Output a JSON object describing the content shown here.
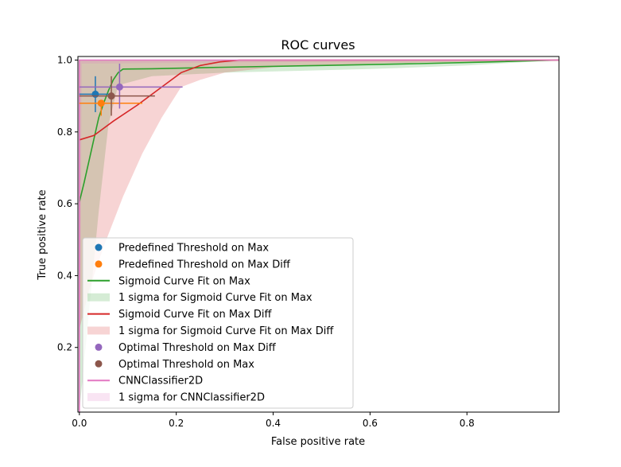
{
  "chart_data": {
    "type": "line",
    "title": "ROC curves",
    "xlabel": "False positive rate",
    "ylabel": "True positive rate",
    "xlim": [
      -0.003,
      0.99
    ],
    "ylim": [
      0.02,
      1.01
    ],
    "xticks": [
      0.0,
      0.2,
      0.4,
      0.6,
      0.8
    ],
    "xtick_labels": [
      "0.0",
      "0.2",
      "0.4",
      "0.6",
      "0.8"
    ],
    "yticks": [
      0.2,
      0.4,
      0.6,
      0.8,
      1.0
    ],
    "ytick_labels": [
      "0.2",
      "0.4",
      "0.6",
      "0.8",
      "1.0"
    ],
    "grid": false,
    "legend_position": "lower-left",
    "series": [
      {
        "name": "1 sigma for Sigmoid Curve Fit on Max",
        "kind": "band",
        "color": "#2ca02c",
        "opacity": 0.2,
        "upper": [
          [
            0.0,
            0.02
          ],
          [
            0.0,
            1.0
          ],
          [
            0.99,
            1.0
          ]
        ],
        "lower": [
          [
            0.0,
            0.02
          ],
          [
            0.02,
            0.3
          ],
          [
            0.04,
            0.58
          ],
          [
            0.06,
            0.82
          ],
          [
            0.08,
            0.93
          ],
          [
            0.15,
            0.955
          ],
          [
            0.3,
            0.965
          ],
          [
            0.6,
            0.975
          ],
          [
            0.8,
            0.985
          ],
          [
            0.99,
            1.0
          ]
        ]
      },
      {
        "name": "1 sigma for Sigmoid Curve Fit on Max Diff",
        "kind": "band",
        "color": "#d62728",
        "opacity": 0.2,
        "upper": [
          [
            0.0,
            0.02
          ],
          [
            0.0,
            1.0
          ],
          [
            0.99,
            1.0
          ]
        ],
        "lower": [
          [
            0.0,
            0.02
          ],
          [
            0.0,
            0.25
          ],
          [
            0.02,
            0.36
          ],
          [
            0.05,
            0.48
          ],
          [
            0.09,
            0.62
          ],
          [
            0.13,
            0.74
          ],
          [
            0.17,
            0.84
          ],
          [
            0.21,
            0.925
          ],
          [
            0.25,
            0.945
          ],
          [
            0.3,
            0.965
          ],
          [
            0.4,
            0.98
          ],
          [
            0.6,
            0.99
          ],
          [
            0.99,
            1.0
          ]
        ]
      },
      {
        "name": "1 sigma for CNNClassifier2D",
        "kind": "band",
        "color": "#e377c2",
        "opacity": 0.2,
        "upper": [
          [
            0.0,
            0.02
          ],
          [
            0.0,
            1.0
          ],
          [
            0.99,
            1.0
          ]
        ],
        "lower": [
          [
            0.0,
            0.02
          ],
          [
            0.001,
            0.1
          ],
          [
            0.003,
            0.5
          ],
          [
            0.005,
            0.99
          ],
          [
            0.99,
            1.0
          ]
        ]
      },
      {
        "name": "Sigmoid Curve Fit on Max",
        "kind": "line",
        "color": "#2ca02c",
        "points": [
          [
            0.0,
            0.605
          ],
          [
            0.01,
            0.66
          ],
          [
            0.02,
            0.72
          ],
          [
            0.03,
            0.78
          ],
          [
            0.04,
            0.84
          ],
          [
            0.05,
            0.88
          ],
          [
            0.06,
            0.915
          ],
          [
            0.07,
            0.945
          ],
          [
            0.08,
            0.965
          ],
          [
            0.09,
            0.975
          ],
          [
            0.15,
            0.976
          ],
          [
            0.3,
            0.98
          ],
          [
            0.5,
            0.985
          ],
          [
            0.7,
            0.99
          ],
          [
            0.85,
            0.995
          ],
          [
            0.99,
            1.0
          ]
        ]
      },
      {
        "name": "Sigmoid Curve Fit on Max Diff",
        "kind": "line",
        "color": "#d62728",
        "points": [
          [
            0.0,
            0.778
          ],
          [
            0.03,
            0.79
          ],
          [
            0.07,
            0.83
          ],
          [
            0.12,
            0.875
          ],
          [
            0.17,
            0.925
          ],
          [
            0.21,
            0.965
          ],
          [
            0.25,
            0.985
          ],
          [
            0.29,
            0.995
          ],
          [
            0.33,
            1.0
          ],
          [
            0.99,
            1.0
          ]
        ]
      },
      {
        "name": "CNNClassifier2D",
        "kind": "line",
        "color": "#e377c2",
        "points": [
          [
            0.0,
            0.02
          ],
          [
            0.0,
            1.0
          ],
          [
            0.99,
            1.0
          ]
        ]
      },
      {
        "name": "Predefined Threshold on Max",
        "kind": "point",
        "color": "#1f77b4",
        "x": 0.033,
        "y": 0.905,
        "xerr": [
          0.033,
          0.033
        ],
        "yerr": [
          0.05,
          0.05
        ]
      },
      {
        "name": "Predefined Threshold on Max Diff",
        "kind": "point",
        "color": "#ff7f0e",
        "x": 0.045,
        "y": 0.88,
        "xerr": [
          0.045,
          0.085
        ],
        "yerr": [
          0.035,
          0.0
        ]
      },
      {
        "name": "Optimal Threshold on Max Diff",
        "kind": "point",
        "color": "#9467bd",
        "x": 0.083,
        "y": 0.925,
        "xerr": [
          0.083,
          0.13
        ],
        "yerr": [
          0.06,
          0.065
        ]
      },
      {
        "name": "Optimal Threshold on Max",
        "kind": "point",
        "color": "#8c564b",
        "x": 0.066,
        "y": 0.9,
        "xerr": [
          0.066,
          0.09
        ],
        "yerr": [
          0.055,
          0.055
        ]
      }
    ],
    "legend": [
      {
        "label": "Predefined Threshold on Max",
        "marker": "dot",
        "color": "#1f77b4"
      },
      {
        "label": "Predefined Threshold on Max Diff",
        "marker": "dot",
        "color": "#ff7f0e"
      },
      {
        "label": "Sigmoid Curve Fit on Max",
        "marker": "line",
        "color": "#2ca02c"
      },
      {
        "label": "1 sigma for Sigmoid Curve Fit on Max",
        "marker": "patch",
        "color": "#2ca02c"
      },
      {
        "label": "Sigmoid Curve Fit on Max Diff",
        "marker": "line",
        "color": "#d62728"
      },
      {
        "label": "1 sigma for Sigmoid Curve Fit on Max Diff",
        "marker": "patch",
        "color": "#d62728"
      },
      {
        "label": "Optimal Threshold on Max Diff",
        "marker": "dot",
        "color": "#9467bd"
      },
      {
        "label": "Optimal Threshold on Max",
        "marker": "dot",
        "color": "#8c564b"
      },
      {
        "label": "CNNClassifier2D",
        "marker": "line",
        "color": "#e377c2"
      },
      {
        "label": "1 sigma for CNNClassifier2D",
        "marker": "patch",
        "color": "#e377c2"
      }
    ]
  }
}
